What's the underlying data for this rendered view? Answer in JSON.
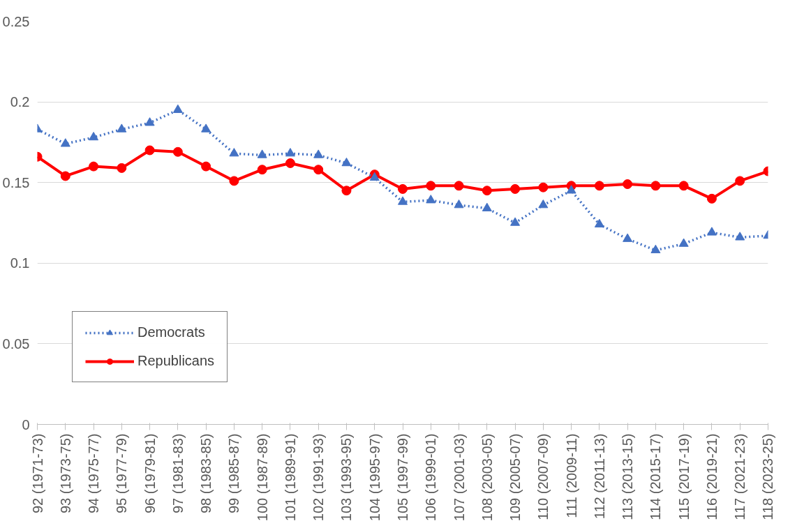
{
  "chart_data": {
    "type": "line",
    "categories": [
      "92 (1971-73)",
      "93 (1973-75)",
      "94 (1975-77)",
      "95 (1977-79)",
      "96 (1979-81)",
      "97 (1981-83)",
      "98 (1983-85)",
      "99 (1985-87)",
      "100 (1987-89)",
      "101 (1989-91)",
      "102 (1991-93)",
      "103 (1993-95)",
      "104 (1995-97)",
      "105 (1997-99)",
      "106 (1999-01)",
      "107 (2001-03)",
      "108 (2003-05)",
      "109 (2005-07)",
      "110 (2007-09)",
      "111 (2009-11)",
      "112 (2011-13)",
      "113 (2013-15)",
      "114 (2015-17)",
      "115 (2017-19)",
      "116 (2019-21)",
      "117 (2021-23)",
      "118 (2023-25)"
    ],
    "series": [
      {
        "name": "Democrats",
        "color": "#4472c4",
        "marker": "triangle",
        "line_style": "dotted",
        "values": [
          0.183,
          0.174,
          0.178,
          0.183,
          0.187,
          0.195,
          0.183,
          0.168,
          0.167,
          0.168,
          0.167,
          0.162,
          0.153,
          0.138,
          0.139,
          0.136,
          0.134,
          0.125,
          0.136,
          0.145,
          0.124,
          0.115,
          0.108,
          0.112,
          0.119,
          0.116,
          0.117
        ]
      },
      {
        "name": "Republicans",
        "color": "#ff0000",
        "marker": "circle",
        "line_style": "solid",
        "values": [
          0.166,
          0.154,
          0.16,
          0.159,
          0.17,
          0.169,
          0.16,
          0.151,
          0.158,
          0.162,
          0.158,
          0.145,
          0.155,
          0.146,
          0.148,
          0.148,
          0.145,
          0.146,
          0.147,
          0.148,
          0.148,
          0.149,
          0.148,
          0.148,
          0.14,
          0.151,
          0.157
        ]
      }
    ],
    "ylim": [
      0,
      0.25
    ],
    "yticks": [
      0,
      0.05,
      0.1,
      0.15,
      0.2,
      0.25
    ],
    "grid": "y",
    "legend": "bottom left"
  }
}
